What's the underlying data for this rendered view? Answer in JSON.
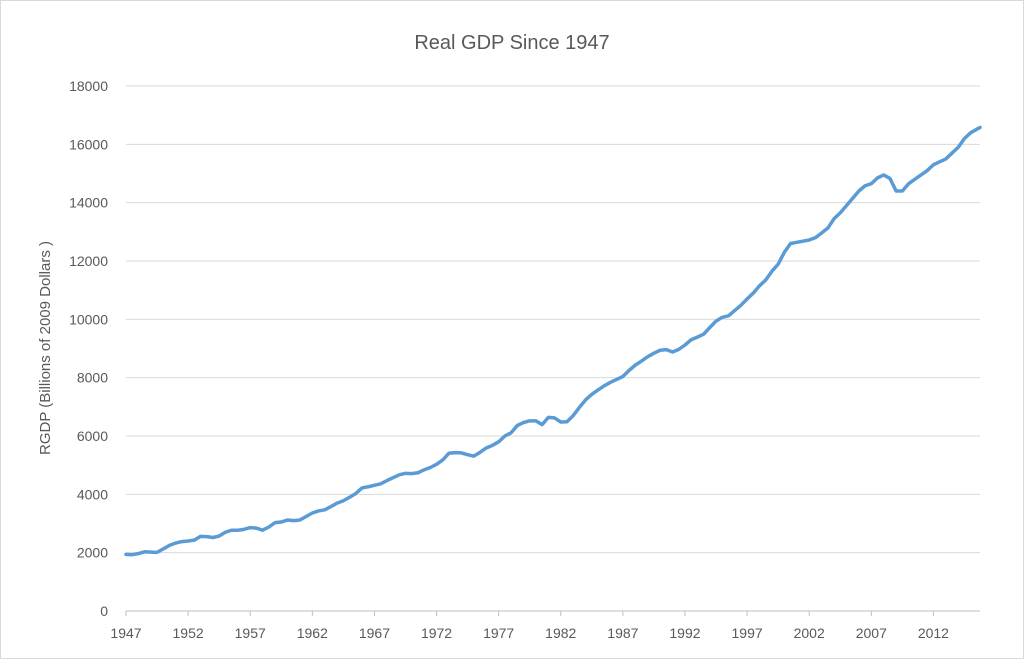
{
  "chart_data": {
    "type": "line",
    "title": "Real GDP Since 1947",
    "xlabel": "",
    "ylabel": "RGDP (Billions of 2009 Dollars )",
    "xlim": [
      1947,
      2015.75
    ],
    "ylim": [
      0,
      18000
    ],
    "y_ticks": [
      "0",
      "2000",
      "4000",
      "6000",
      "8000",
      "10000",
      "12000",
      "14000",
      "16000",
      "18000"
    ],
    "x_ticks": [
      "1947",
      "1952",
      "1957",
      "1962",
      "1967",
      "1972",
      "1977",
      "1982",
      "1987",
      "1992",
      "1997",
      "2002",
      "2007",
      "2012"
    ],
    "grid": true,
    "legend": "none",
    "series": [
      {
        "color": "#5b9bd5",
        "x": [
          1947,
          1947.5,
          1948,
          1948.5,
          1949,
          1949.5,
          1950,
          1950.5,
          1951,
          1951.5,
          1952,
          1952.5,
          1953,
          1953.5,
          1954,
          1954.5,
          1955,
          1955.5,
          1956,
          1956.5,
          1957,
          1957.5,
          1958,
          1958.5,
          1959,
          1959.5,
          1960,
          1960.5,
          1961,
          1961.5,
          1962,
          1962.5,
          1963,
          1963.5,
          1964,
          1964.5,
          1965,
          1965.5,
          1966,
          1966.5,
          1967,
          1967.5,
          1968,
          1968.5,
          1969,
          1969.5,
          1970,
          1970.5,
          1971,
          1971.5,
          1972,
          1972.5,
          1973,
          1973.5,
          1974,
          1974.5,
          1975,
          1975.5,
          1976,
          1976.5,
          1977,
          1977.5,
          1978,
          1978.5,
          1979,
          1979.5,
          1980,
          1980.5,
          1981,
          1981.5,
          1982,
          1982.5,
          1983,
          1983.5,
          1984,
          1984.5,
          1985,
          1985.5,
          1986,
          1986.5,
          1987,
          1987.5,
          1988,
          1988.5,
          1989,
          1989.5,
          1990,
          1990.5,
          1991,
          1991.5,
          1992,
          1992.5,
          1993,
          1993.5,
          1994,
          1994.5,
          1995,
          1995.5,
          1996,
          1996.5,
          1997,
          1997.5,
          1998,
          1998.5,
          1999,
          1999.5,
          2000,
          2000.5,
          2001,
          2001.5,
          2002,
          2002.5,
          2003,
          2003.5,
          2004,
          2004.5,
          2005,
          2005.5,
          2006,
          2006.5,
          2007,
          2007.5,
          2008,
          2008.5,
          2009,
          2009.5,
          2010,
          2010.5,
          2011,
          2011.5,
          2012,
          2012.5,
          2013,
          2013.5,
          2014,
          2014.5,
          2015,
          2015.75
        ],
        "values": [
          1940,
          1930,
          1970,
          2030,
          2020,
          2010,
          2130,
          2250,
          2330,
          2380,
          2400,
          2430,
          2560,
          2550,
          2520,
          2570,
          2700,
          2770,
          2770,
          2800,
          2860,
          2840,
          2770,
          2880,
          3030,
          3050,
          3120,
          3100,
          3120,
          3240,
          3360,
          3430,
          3470,
          3580,
          3700,
          3780,
          3900,
          4030,
          4220,
          4260,
          4310,
          4360,
          4470,
          4570,
          4670,
          4720,
          4710,
          4740,
          4840,
          4920,
          5030,
          5180,
          5410,
          5430,
          5420,
          5360,
          5310,
          5440,
          5590,
          5680,
          5800,
          6000,
          6110,
          6360,
          6460,
          6520,
          6520,
          6390,
          6640,
          6620,
          6480,
          6490,
          6700,
          6980,
          7240,
          7430,
          7580,
          7720,
          7840,
          7940,
          8040,
          8250,
          8430,
          8570,
          8720,
          8840,
          8940,
          8960,
          8880,
          8970,
          9120,
          9300,
          9390,
          9490,
          9720,
          9940,
          10070,
          10120,
          10300,
          10480,
          10700,
          10900,
          11150,
          11350,
          11650,
          11890,
          12300,
          12600,
          12640,
          12680,
          12720,
          12800,
          12960,
          13130,
          13450,
          13650,
          13900,
          14150,
          14400,
          14580,
          14650,
          14850,
          14950,
          14830,
          14400,
          14400,
          14650,
          14800,
          14950,
          15100,
          15300,
          15400,
          15500,
          15700,
          15900,
          16200,
          16400,
          16580
        ]
      }
    ]
  }
}
